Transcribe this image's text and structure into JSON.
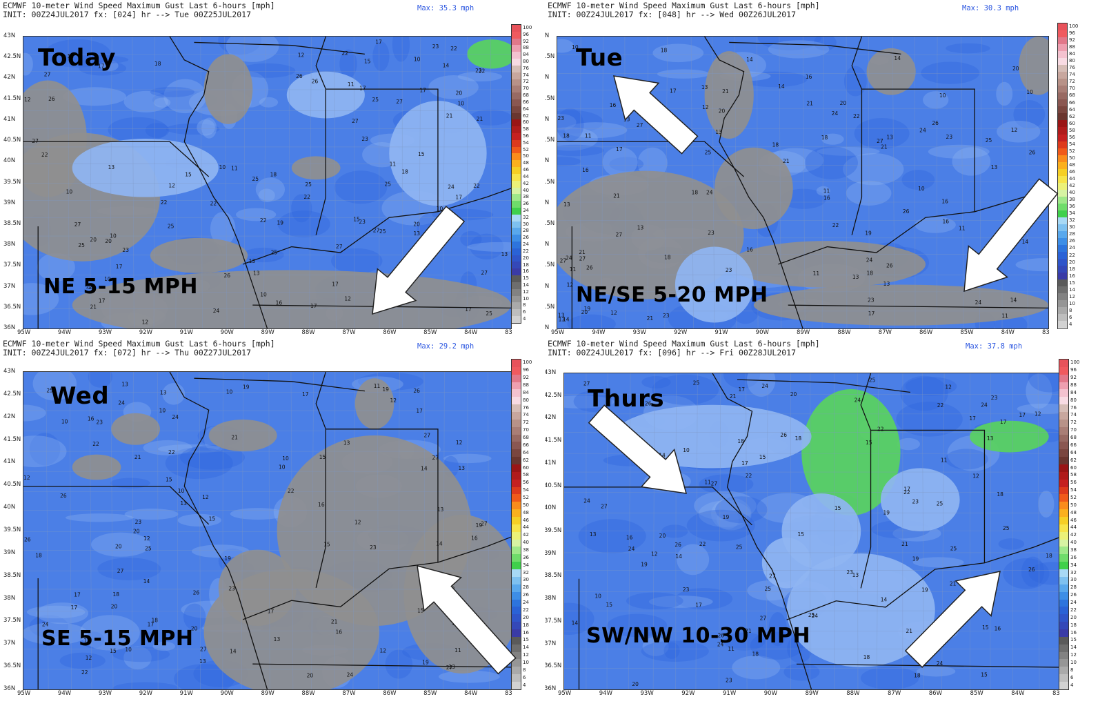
{
  "colors": {
    "blue_deep": "#2f63dc",
    "blue_mid": "#4b7fe6",
    "blue_light": "#8fb5f2",
    "gray": "#8f8f8f",
    "green": "#59d35e",
    "border": "#111111",
    "county": "#7f97c2",
    "arrow": "#ffffff"
  },
  "colorbar": {
    "labels": [
      "100",
      "96",
      "92",
      "88",
      "84",
      "80",
      "76",
      "74",
      "72",
      "70",
      "68",
      "66",
      "64",
      "62",
      "60",
      "58",
      "56",
      "54",
      "52",
      "50",
      "48",
      "46",
      "44",
      "42",
      "40",
      "38",
      "36",
      "34",
      "32",
      "30",
      "28",
      "26",
      "24",
      "22",
      "20",
      "18",
      "16",
      "15",
      "14",
      "12",
      "10",
      "8",
      "6",
      "4"
    ],
    "colors": [
      "#e8525a",
      "#f05a5f",
      "#e2788a",
      "#ee9fb0",
      "#f4c2cf",
      "#f8dbe3",
      "#d6bdb6",
      "#c8a79e",
      "#b89288",
      "#a97e76",
      "#986a63",
      "#8a5751",
      "#7a463f",
      "#6a362f",
      "#9a1515",
      "#b01b1b",
      "#c52020",
      "#dd3a1c",
      "#f05a1a",
      "#fa8c1c",
      "#fbb01e",
      "#f6cf25",
      "#f7e44a",
      "#ecf178",
      "#d7f3a3",
      "#9fe889",
      "#6fdc6a",
      "#3fd04b",
      "#a8d9f5",
      "#7ec1f0",
      "#59a8ec",
      "#3d8ee6",
      "#2d74dd",
      "#2a62d6",
      "#2f55c9",
      "#3448b8",
      "#3a3ba6",
      "#5a5a5a",
      "#6e6e6e",
      "#828282",
      "#969696",
      "#aaaaaa",
      "#bebebe",
      "#d2d2d2"
    ]
  },
  "lat_labels": [
    "43N",
    "42.5N",
    "42N",
    "41.5N",
    "41N",
    "40.5N",
    "40N",
    "39.5N",
    "39N",
    "38.5N",
    "38N",
    "37.5N",
    "37N",
    "36.5N",
    "36N"
  ],
  "lon_labels_a": [
    "95W",
    "94W",
    "93W",
    "92W",
    "91W",
    "90W",
    "89W",
    "88W",
    "87W",
    "86W",
    "85W",
    "84W",
    "83"
  ],
  "panels": [
    {
      "header_line1": "ECMWF 10-meter Wind Speed Maximum Gust Last 6-hours [mph]",
      "header_line2": "INIT: 00Z24JUL2017 fx: [024] hr --> Tue 00Z25JUL2017",
      "max_label": "Max: 35.3 mph",
      "day_label": "Today",
      "wind_label": "NE 5-15 MPH",
      "lon_labels": [
        "95W",
        "94W",
        "93W",
        "92W",
        "91W",
        "90W",
        "89W",
        "88W",
        "87W",
        "86W",
        "85W",
        "84W",
        "83"
      ]
    },
    {
      "header_line1": "ECMWF 10-meter Wind Speed Maximum Gust Last 6-hours [mph]",
      "header_line2": "INIT: 00Z24JUL2017 fx: [048] hr --> Wed 00Z26JUL2017",
      "max_label": "Max: 30.3 mph",
      "day_label": "Tue",
      "wind_label": "NE/SE 5-20 MPH",
      "lon_labels": [
        "95W",
        "94W",
        "93W",
        "92W",
        "91W",
        "90W",
        "89W",
        "88W",
        "87W",
        "86W",
        "85W",
        "84W",
        "83"
      ]
    },
    {
      "header_line1": "ECMWF 10-meter Wind Speed Maximum Gust Last 6-hours [mph]",
      "header_line2": "INIT: 00Z24JUL2017 fx: [072] hr --> Thu 00Z27JUL2017",
      "max_label": "Max: 29.2 mph",
      "day_label": "Wed",
      "wind_label": "SE 5-15 MPH",
      "lon_labels": [
        "95W",
        "94W",
        "93W",
        "92W",
        "91W",
        "90W",
        "89W",
        "88W",
        "87W",
        "86W",
        "85W",
        "84W",
        "83"
      ]
    },
    {
      "header_line1": "ECMWF 10-meter Wind Speed Maximum Gust Last 6-hours [mph]",
      "header_line2": "INIT: 00Z24JUL2017 fx: [096] hr --> Fri 00Z28JUL2017",
      "max_label": "Max: 37.8 mph",
      "day_label": "Thurs",
      "wind_label": "SW/NW 10-30 MPH",
      "lon_labels": [
        "95W",
        "94W",
        "93W",
        "92W",
        "91W",
        "90W",
        "89W",
        "88W",
        "87W",
        "86W",
        "85W",
        "84W",
        "83"
      ]
    }
  ]
}
